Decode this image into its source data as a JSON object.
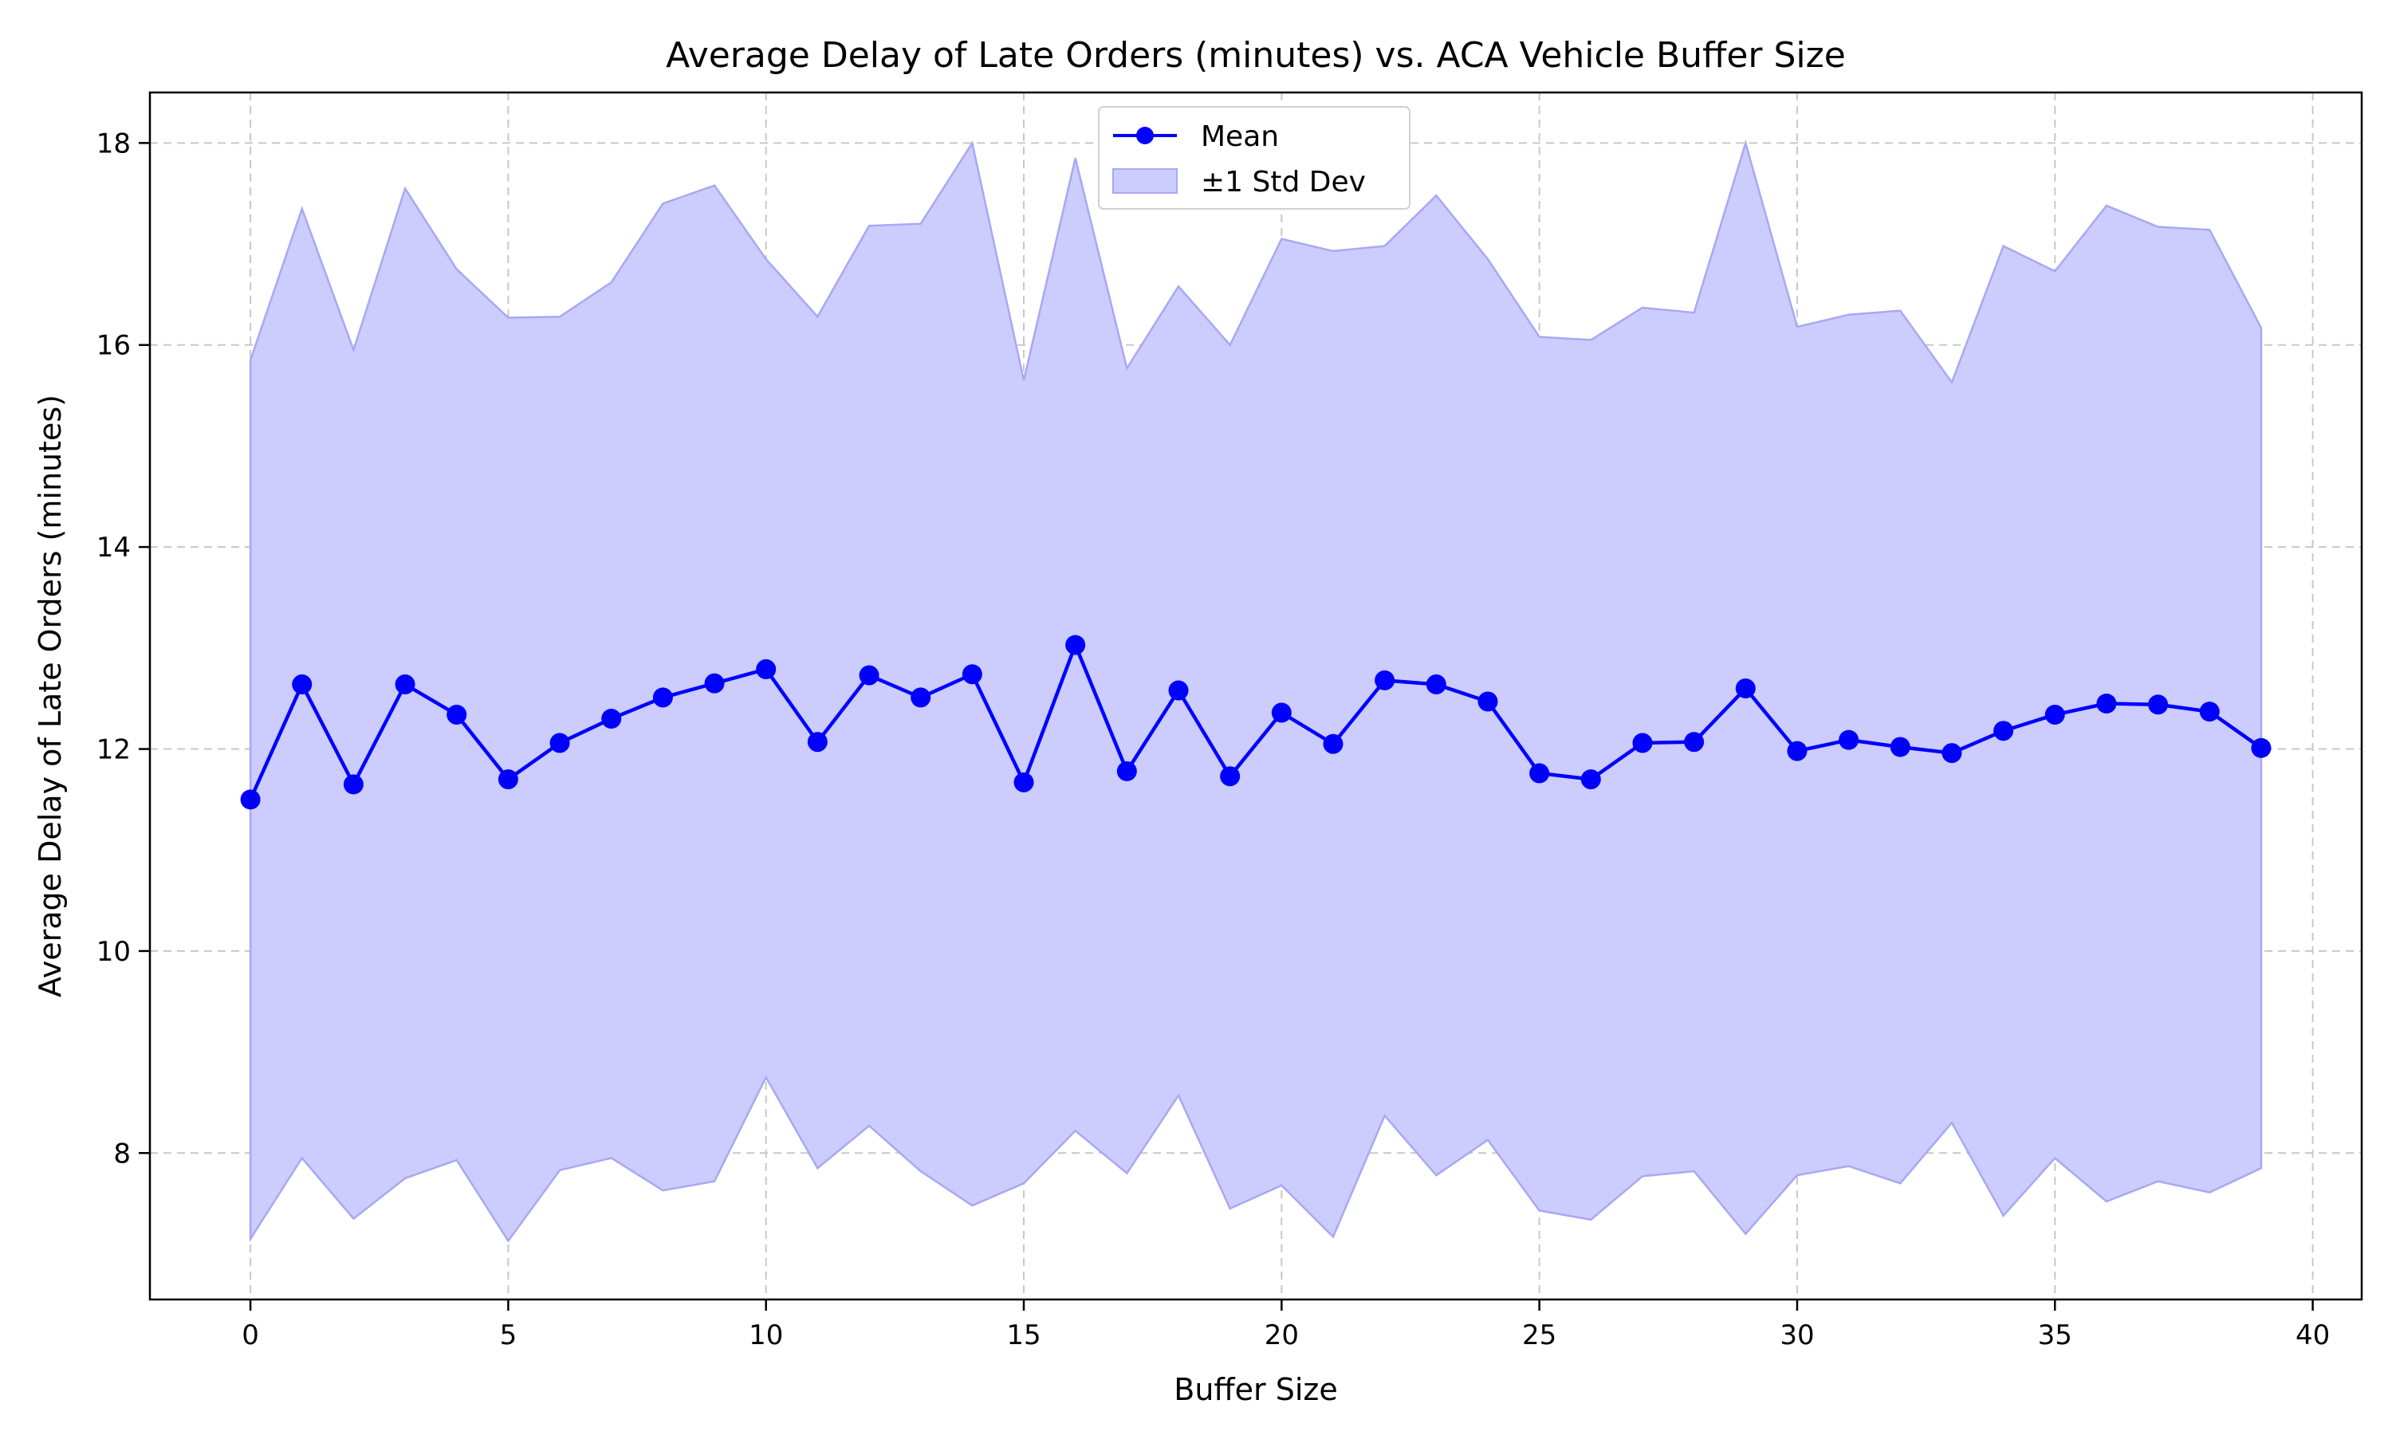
{
  "chart_data": {
    "type": "line",
    "title": "Average Delay of Late Orders (minutes) vs. ACA Vehicle Buffer Size",
    "xlabel": "Buffer Size",
    "ylabel": "Average Delay of Late Orders (minutes)",
    "xlim": [
      -1.95,
      40.95
    ],
    "ylim": [
      6.55,
      18.5
    ],
    "xticks": [
      0,
      5,
      10,
      15,
      20,
      25,
      30,
      35,
      40
    ],
    "xtick_labels": [
      "0",
      "5",
      "10",
      "15",
      "20",
      "25",
      "30",
      "35",
      "40"
    ],
    "yticks": [
      8,
      10,
      12,
      14,
      16,
      18
    ],
    "ytick_labels": [
      "8",
      "10",
      "12",
      "14",
      "16",
      "18"
    ],
    "grid": true,
    "legend_position": "top-center",
    "colors": {
      "mean_line": "#0000ff",
      "band_fill": "#ccccff",
      "band_edge": "#a8a8f2",
      "grid": "#c8c8c8"
    },
    "x": [
      0,
      1,
      2,
      3,
      4,
      5,
      6,
      7,
      8,
      9,
      10,
      11,
      12,
      13,
      14,
      15,
      16,
      17,
      18,
      19,
      20,
      21,
      22,
      23,
      24,
      25,
      26,
      27,
      28,
      29,
      30,
      31,
      32,
      33,
      34,
      35,
      36,
      37,
      38,
      39
    ],
    "series": [
      {
        "name": "Mean",
        "values": [
          11.5,
          12.64,
          11.65,
          12.64,
          12.34,
          11.7,
          12.06,
          12.3,
          12.51,
          12.65,
          12.79,
          12.07,
          12.73,
          12.51,
          12.74,
          11.67,
          13.03,
          11.78,
          12.58,
          11.73,
          12.36,
          12.05,
          12.68,
          12.64,
          12.47,
          11.76,
          11.7,
          12.06,
          12.07,
          12.6,
          11.98,
          12.09,
          12.02,
          11.96,
          12.18,
          12.34,
          12.45,
          12.44,
          12.37,
          12.01
        ]
      },
      {
        "name": "±1 Std Dev",
        "upper": [
          15.85,
          17.35,
          15.95,
          17.55,
          16.75,
          16.27,
          16.28,
          16.62,
          17.4,
          17.58,
          16.85,
          16.28,
          17.18,
          17.2,
          18.0,
          15.65,
          17.85,
          15.77,
          16.58,
          16.0,
          17.05,
          16.93,
          16.98,
          17.48,
          16.85,
          16.08,
          16.05,
          16.37,
          16.32,
          18.0,
          16.18,
          16.3,
          16.34,
          15.63,
          16.98,
          16.73,
          17.38,
          17.17,
          17.14,
          16.17
        ],
        "lower": [
          7.15,
          7.95,
          7.35,
          7.75,
          7.93,
          7.13,
          7.83,
          7.95,
          7.63,
          7.72,
          8.75,
          7.85,
          8.27,
          7.82,
          7.48,
          7.7,
          8.22,
          7.8,
          8.57,
          7.45,
          7.68,
          7.17,
          8.37,
          7.78,
          8.13,
          7.43,
          7.34,
          7.77,
          7.82,
          7.2,
          7.78,
          7.87,
          7.7,
          8.3,
          7.38,
          7.95,
          7.52,
          7.72,
          7.61,
          7.85
        ]
      }
    ]
  }
}
